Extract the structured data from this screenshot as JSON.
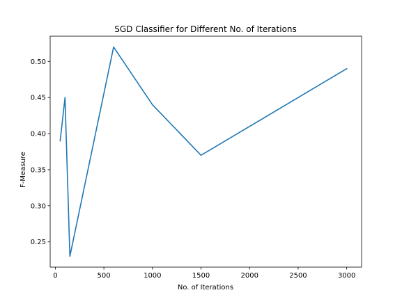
{
  "chart_data": {
    "type": "line",
    "title": "SGD Classifier for Different No. of Iterations",
    "xlabel": "No. of Iterations",
    "ylabel": "F-Measure",
    "xlim": [
      -53,
      3153
    ],
    "ylim": [
      0.215,
      0.535
    ],
    "xticks": [
      0,
      500,
      1000,
      1500,
      2000,
      2500,
      3000
    ],
    "xtick_labels": [
      "0",
      "500",
      "1000",
      "1500",
      "2000",
      "2500",
      "3000"
    ],
    "yticks": [
      0.25,
      0.3,
      0.35,
      0.4,
      0.45,
      0.5
    ],
    "ytick_labels": [
      "0.25",
      "0.30",
      "0.35",
      "0.40",
      "0.45",
      "0.50"
    ],
    "grid": false,
    "legend": "none",
    "series": [
      {
        "x": [
          50,
          100,
          150,
          600,
          1000,
          1500,
          3000
        ],
        "y": [
          0.39,
          0.45,
          0.23,
          0.52,
          0.44,
          0.37,
          0.49
        ],
        "color": "#1f77b4"
      }
    ]
  }
}
